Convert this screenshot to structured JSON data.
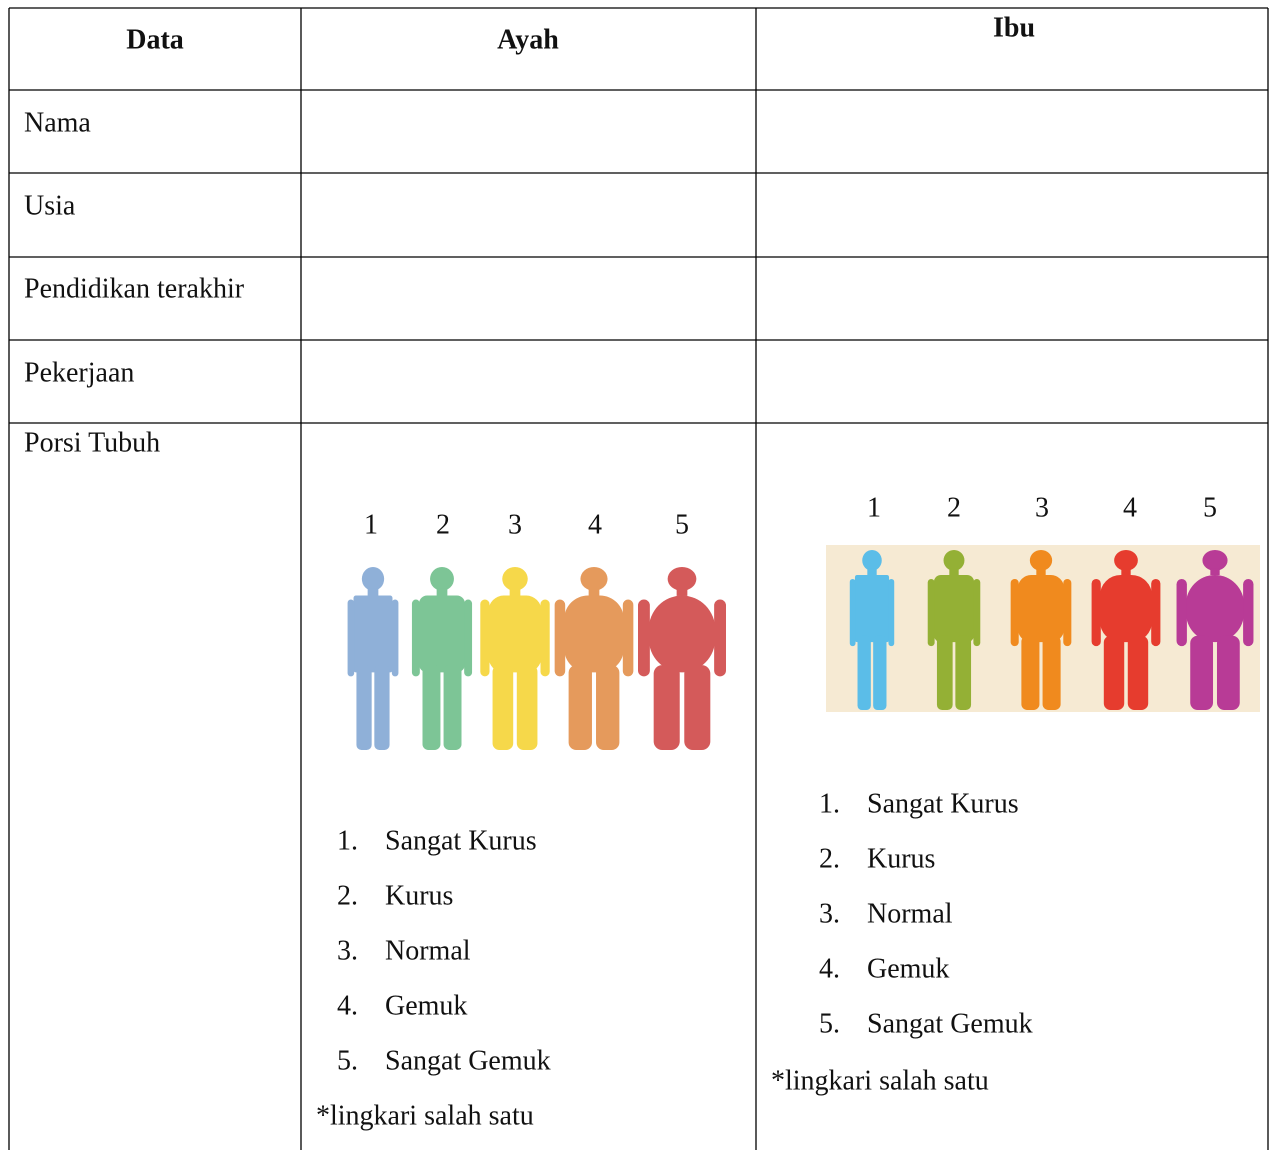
{
  "table": {
    "header": [
      "Data",
      "Ayah",
      "Ibu"
    ],
    "row_labels": [
      "Nama",
      "Usia",
      "Pendidikan terakhir",
      "Pekerjaan",
      "Porsi Tubuh"
    ]
  },
  "ayah_body": {
    "figure_labels": [
      "1",
      "2",
      "3",
      "4",
      "5"
    ],
    "options": [
      {
        "number": "1.",
        "text": "Sangat Kurus"
      },
      {
        "number": "2.",
        "text": "Kurus"
      },
      {
        "number": "3.",
        "text": "Normal"
      },
      {
        "number": "4.",
        "text": "Gemuk"
      },
      {
        "number": "5.",
        "text": "Sangat Gemuk"
      }
    ],
    "note": "*lingkari salah satu"
  },
  "ibu_body": {
    "figure_labels": [
      "1",
      "2",
      "3",
      "4",
      "5"
    ],
    "options": [
      {
        "number": "1.",
        "text": "Sangat Kurus"
      },
      {
        "number": "2.",
        "text": "Kurus"
      },
      {
        "number": "3.",
        "text": "Normal"
      },
      {
        "number": "4.",
        "text": "Gemuk"
      },
      {
        "number": "5.",
        "text": "Sangat Gemuk"
      }
    ],
    "note": "*lingkari salah satu"
  }
}
